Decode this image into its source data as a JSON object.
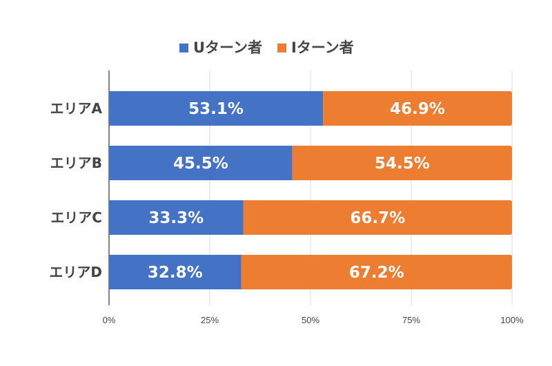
{
  "chart_data": {
    "type": "bar",
    "orientation": "horizontal",
    "stacked": "percent",
    "title": "",
    "categories": [
      "エリアA",
      "エリアB",
      "エリアC",
      "エリアD"
    ],
    "series": [
      {
        "name": "Uターン者",
        "color": "#4472c4",
        "values": [
          53.1,
          45.5,
          33.3,
          32.8
        ],
        "labels": [
          "53.1%",
          "45.5%",
          "33.3%",
          "32.8%"
        ]
      },
      {
        "name": "Iターン者",
        "color": "#ed7d31",
        "values": [
          46.9,
          54.5,
          66.7,
          67.2
        ],
        "labels": [
          "46.9%",
          "54.5%",
          "66.7%",
          "67.2%"
        ]
      }
    ],
    "xlim": [
      0,
      100
    ],
    "xticks": [
      0,
      25,
      50,
      75,
      100
    ],
    "xtick_labels": [
      "0%",
      "25%",
      "50%",
      "75%",
      "100%"
    ],
    "grid": true,
    "legend_position": "top"
  }
}
